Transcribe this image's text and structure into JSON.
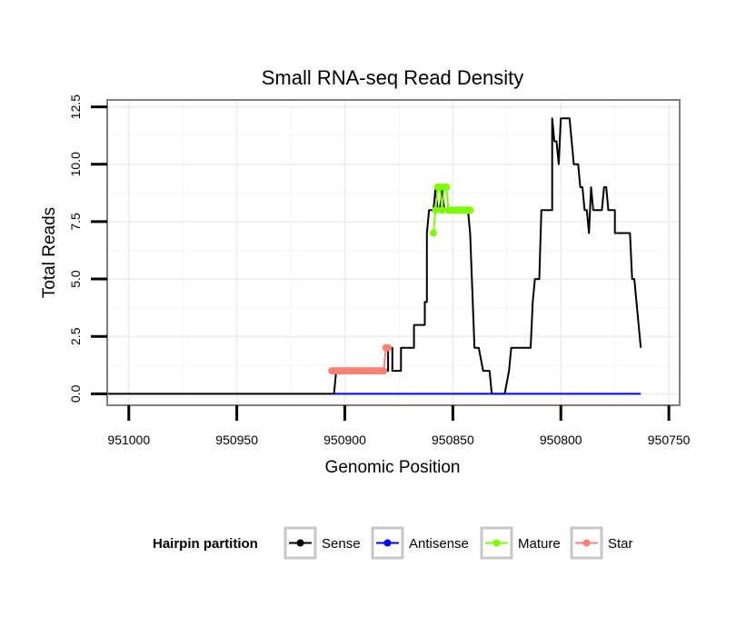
{
  "chart_data": {
    "type": "line",
    "title": "Small RNA-seq Read Density",
    "xlabel": "Genomic Position",
    "ylabel": "Total Reads",
    "xlim": [
      951010,
      950745
    ],
    "ylim": [
      -0.5,
      12.8
    ],
    "x_reversed": true,
    "xticks": [
      951000,
      950950,
      950900,
      950850,
      950800,
      950750
    ],
    "xtick_labels": [
      "951000",
      "950950",
      "950900",
      "950850",
      "950800",
      "950750"
    ],
    "yticks": [
      0,
      2.5,
      5,
      7.5,
      10,
      12.5
    ],
    "ytick_labels": [
      "0.0",
      "2.5",
      "5.0",
      "7.5",
      "10.0",
      "12.5"
    ],
    "grid": true,
    "legend": {
      "title": "Hairpin partition",
      "position": "bottom",
      "entries": [
        {
          "label": "Sense",
          "color": "#000000"
        },
        {
          "label": "Antisense",
          "color": "#0000ff"
        },
        {
          "label": "Mature",
          "color": "#7cfc00"
        },
        {
          "label": "Star",
          "color": "#fa8072"
        }
      ]
    },
    "series": [
      {
        "name": "Sense",
        "color": "#000000",
        "points": [
          [
            951010,
            0
          ],
          [
            950905,
            0
          ],
          [
            950904,
            1
          ],
          [
            950880,
            1
          ],
          [
            950880,
            2
          ],
          [
            950878,
            2
          ],
          [
            950878,
            1
          ],
          [
            950874,
            1
          ],
          [
            950874,
            2
          ],
          [
            950868,
            2
          ],
          [
            950868,
            3
          ],
          [
            950863,
            3
          ],
          [
            950863,
            4
          ],
          [
            950862,
            4
          ],
          [
            950862,
            7
          ],
          [
            950861,
            8
          ],
          [
            950859,
            8
          ],
          [
            950858,
            9
          ],
          [
            950857,
            8
          ],
          [
            950856,
            8
          ],
          [
            950855,
            9
          ],
          [
            950854,
            8
          ],
          [
            950843,
            8
          ],
          [
            950842,
            7
          ],
          [
            950840,
            2
          ],
          [
            950838,
            2
          ],
          [
            950836,
            1
          ],
          [
            950833,
            1
          ],
          [
            950832,
            0
          ],
          [
            950826,
            0
          ],
          [
            950824,
            1
          ],
          [
            950823,
            2
          ],
          [
            950814,
            2
          ],
          [
            950813,
            4
          ],
          [
            950812,
            5
          ],
          [
            950810,
            5
          ],
          [
            950809,
            8
          ],
          [
            950804,
            8
          ],
          [
            950804,
            12
          ],
          [
            950803,
            11
          ],
          [
            950802,
            11
          ],
          [
            950801,
            10
          ],
          [
            950800,
            12
          ],
          [
            950796,
            12
          ],
          [
            950794,
            10
          ],
          [
            950792,
            10
          ],
          [
            950791,
            9
          ],
          [
            950790,
            9
          ],
          [
            950789,
            8
          ],
          [
            950788,
            8
          ],
          [
            950787,
            7
          ],
          [
            950786,
            9
          ],
          [
            950785,
            8
          ],
          [
            950781,
            8
          ],
          [
            950780,
            9
          ],
          [
            950779,
            9
          ],
          [
            950778,
            8
          ],
          [
            950775,
            8
          ],
          [
            950775,
            7
          ],
          [
            950768,
            7
          ],
          [
            950767,
            5
          ],
          [
            950766,
            5
          ],
          [
            950763,
            2
          ]
        ]
      },
      {
        "name": "Antisense",
        "color": "#0000ff",
        "points": [
          [
            950905,
            0
          ],
          [
            950763,
            0
          ]
        ]
      },
      {
        "name": "Mature",
        "color": "#7cfc00",
        "markers": true,
        "points": [
          [
            950859,
            7
          ],
          [
            950858,
            8
          ],
          [
            950857,
            9
          ],
          [
            950856,
            9
          ],
          [
            950855,
            8
          ],
          [
            950854,
            9
          ],
          [
            950853,
            9
          ],
          [
            950852,
            8
          ],
          [
            950851,
            8
          ],
          [
            950850,
            8
          ],
          [
            950849,
            8
          ],
          [
            950848,
            8
          ],
          [
            950847,
            8
          ],
          [
            950846,
            8
          ],
          [
            950845,
            8
          ],
          [
            950844,
            8
          ],
          [
            950843,
            8
          ],
          [
            950842,
            8
          ]
        ]
      },
      {
        "name": "Star",
        "color": "#fa8072",
        "markers": true,
        "points": [
          [
            950906,
            1
          ],
          [
            950905,
            1
          ],
          [
            950904,
            1
          ],
          [
            950903,
            1
          ],
          [
            950902,
            1
          ],
          [
            950901,
            1
          ],
          [
            950900,
            1
          ],
          [
            950899,
            1
          ],
          [
            950898,
            1
          ],
          [
            950897,
            1
          ],
          [
            950896,
            1
          ],
          [
            950895,
            1
          ],
          [
            950894,
            1
          ],
          [
            950893,
            1
          ],
          [
            950892,
            1
          ],
          [
            950891,
            1
          ],
          [
            950890,
            1
          ],
          [
            950889,
            1
          ],
          [
            950888,
            1
          ],
          [
            950887,
            1
          ],
          [
            950886,
            1
          ],
          [
            950885,
            1
          ],
          [
            950884,
            1
          ],
          [
            950883,
            1
          ],
          [
            950882,
            1
          ],
          [
            950881,
            2
          ],
          [
            950880,
            2
          ]
        ]
      }
    ]
  }
}
